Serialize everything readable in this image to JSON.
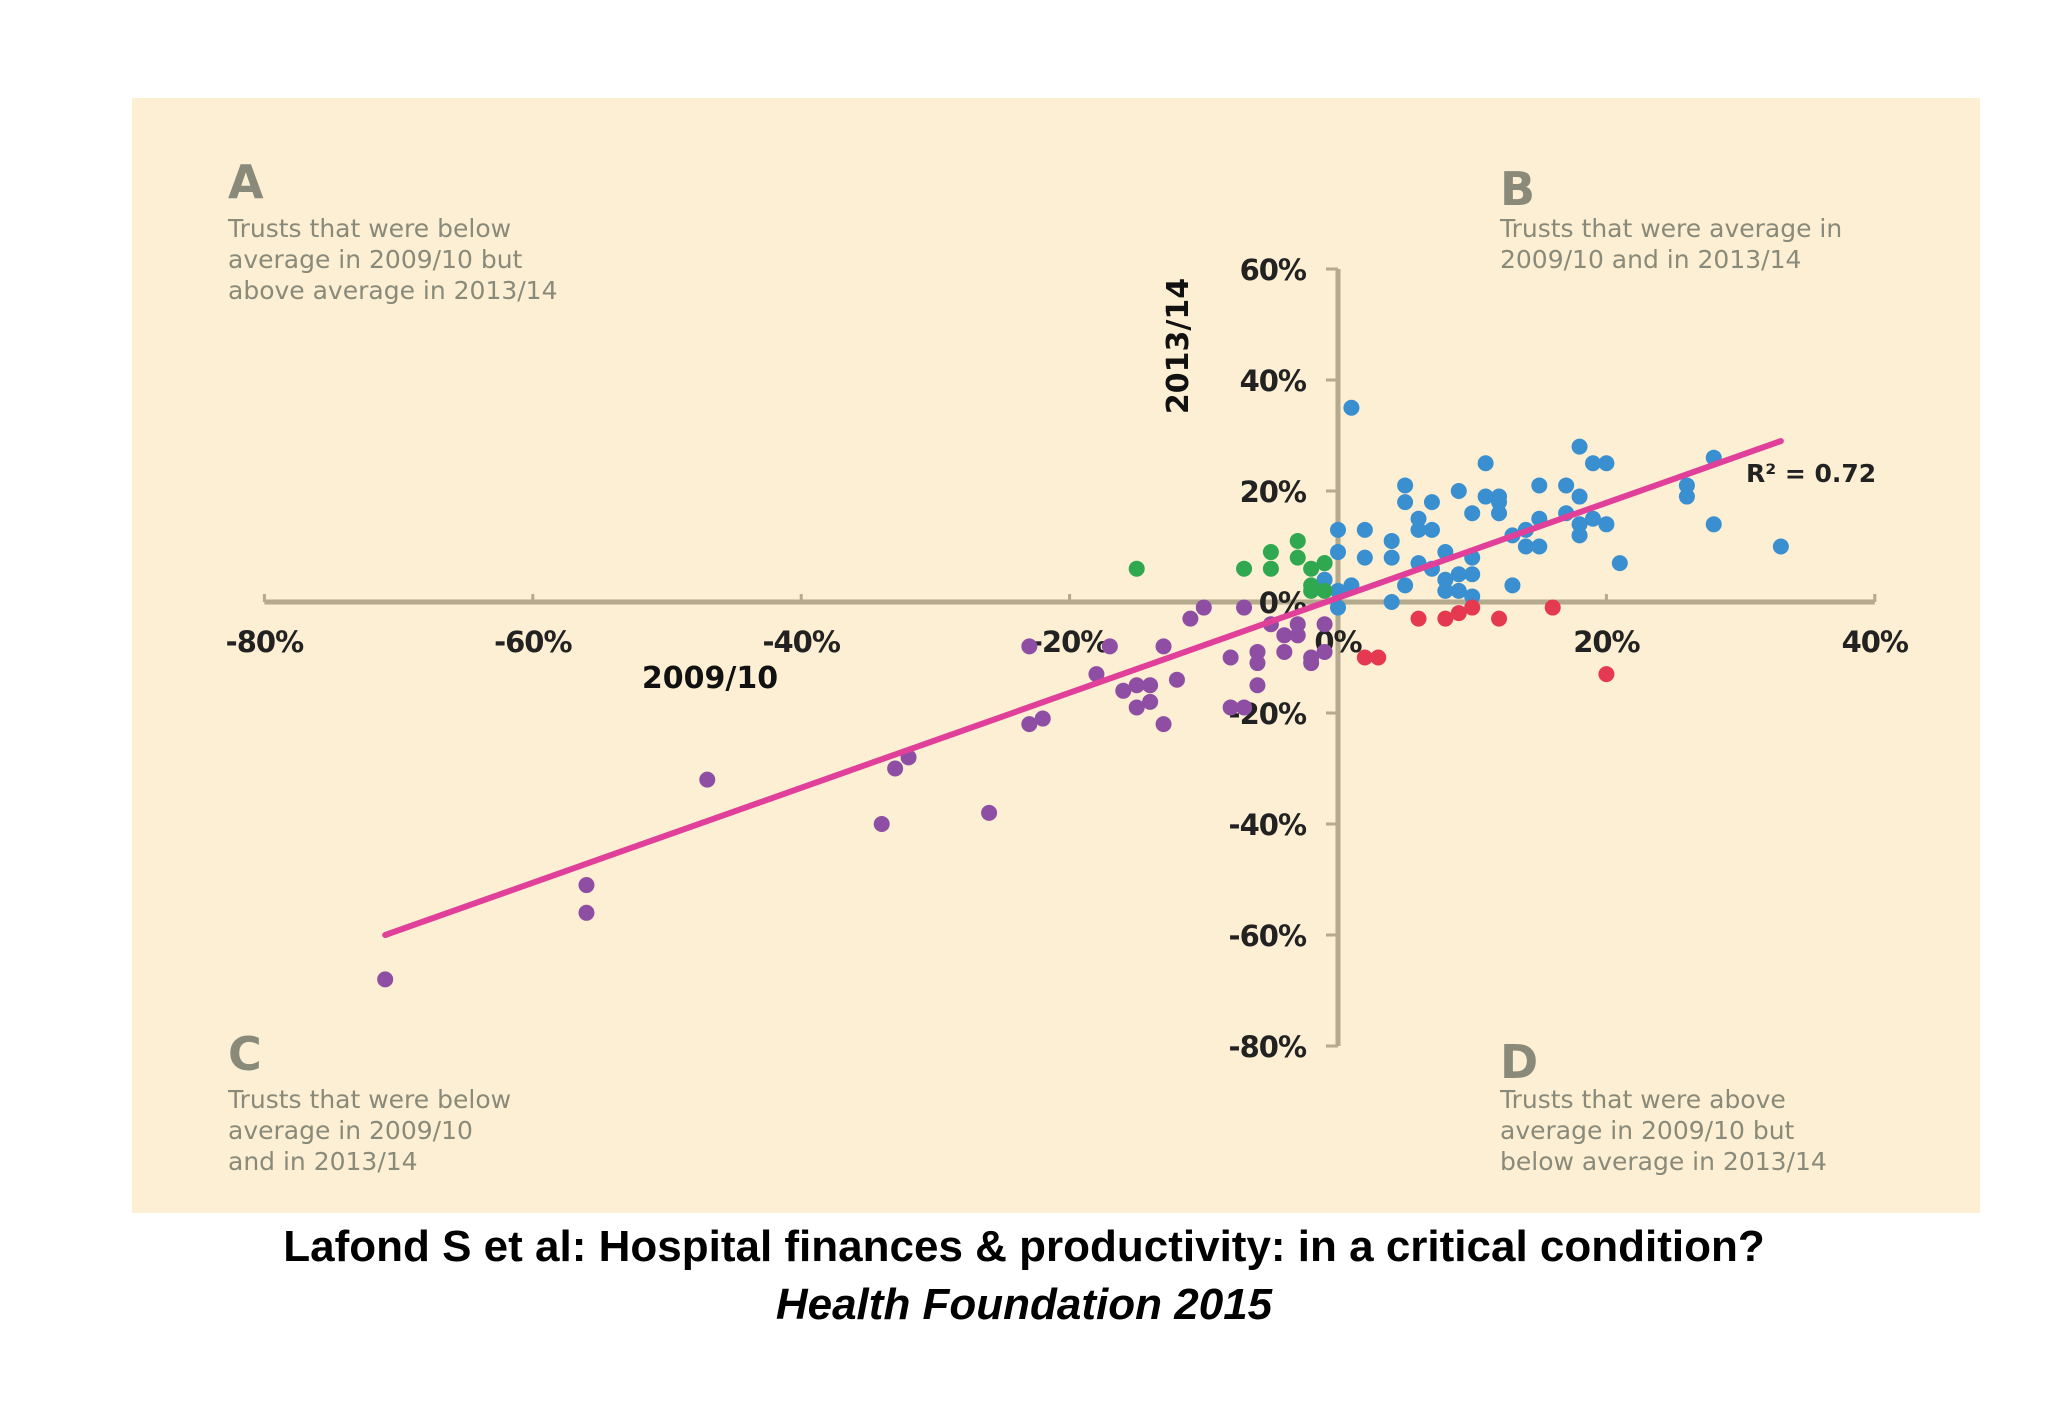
{
  "chart_data": {
    "type": "scatter",
    "xlabel": "2009/10",
    "ylabel": "2013/14",
    "xlim": [
      -80,
      40
    ],
    "ylim": [
      -80,
      60
    ],
    "xticks": [
      "-80%",
      "-60%",
      "-40%",
      "-20%",
      "0%",
      "20%",
      "40%"
    ],
    "xtick_values": [
      -80,
      -60,
      -40,
      -20,
      0,
      20,
      40
    ],
    "yticks": [
      "60%",
      "40%",
      "20%",
      "0%",
      "-20%",
      "-40%",
      "-60%",
      "-80%"
    ],
    "ytick_values": [
      60,
      40,
      20,
      0,
      -20,
      -40,
      -60,
      -80
    ],
    "background": "#fcefd3",
    "axis_color": "#b5a98e",
    "quadrants": [
      {
        "letter": "A",
        "lines": [
          "Trusts that were below",
          "average in 2009/10 but",
          "above average in 2013/14"
        ]
      },
      {
        "letter": "B",
        "lines": [
          "Trusts that were average in",
          "2009/10 and in 2013/14"
        ]
      },
      {
        "letter": "C",
        "lines": [
          "Trusts that were below",
          "average in 2009/10",
          "and in 2013/14"
        ]
      },
      {
        "letter": "D",
        "lines": [
          "Trusts that were above",
          "average in 2009/10 but",
          "below average in 2013/14"
        ]
      }
    ],
    "trendline": {
      "color": "#e0409a",
      "points": [
        [
          -71,
          -60
        ],
        [
          33,
          29
        ]
      ],
      "r2_label": "R² = 0.72"
    },
    "series": [
      {
        "color": "#3a8fd0",
        "points": [
          [
            1,
            35
          ],
          [
            0,
            13
          ],
          [
            2,
            13
          ],
          [
            0,
            9
          ],
          [
            2,
            8
          ],
          [
            0,
            2
          ],
          [
            0,
            -1
          ],
          [
            1,
            3
          ],
          [
            -1,
            7
          ],
          [
            -1,
            4
          ],
          [
            4,
            11
          ],
          [
            4,
            8
          ],
          [
            4,
            0
          ],
          [
            5,
            3
          ],
          [
            5,
            21
          ],
          [
            5,
            18
          ],
          [
            6,
            13
          ],
          [
            6,
            15
          ],
          [
            6,
            7
          ],
          [
            7,
            18
          ],
          [
            7,
            13
          ],
          [
            7,
            6
          ],
          [
            8,
            4
          ],
          [
            8,
            2
          ],
          [
            8,
            9
          ],
          [
            9,
            5
          ],
          [
            9,
            2
          ],
          [
            9,
            20
          ],
          [
            10,
            8
          ],
          [
            10,
            5
          ],
          [
            10,
            1
          ],
          [
            10,
            16
          ],
          [
            11,
            25
          ],
          [
            11,
            19
          ],
          [
            12,
            16
          ],
          [
            12,
            18
          ],
          [
            12,
            19
          ],
          [
            13,
            3
          ],
          [
            13,
            12
          ],
          [
            14,
            10
          ],
          [
            14,
            13
          ],
          [
            15,
            10
          ],
          [
            15,
            15
          ],
          [
            15,
            21
          ],
          [
            17,
            21
          ],
          [
            17,
            16
          ],
          [
            18,
            28
          ],
          [
            18,
            19
          ],
          [
            18,
            14
          ],
          [
            18,
            12
          ],
          [
            19,
            25
          ],
          [
            19,
            15
          ],
          [
            20,
            25
          ],
          [
            20,
            14
          ],
          [
            21,
            7
          ],
          [
            26,
            21
          ],
          [
            26,
            19
          ],
          [
            28,
            26
          ],
          [
            28,
            14
          ],
          [
            33,
            10
          ]
        ]
      },
      {
        "color": "#2fa84f",
        "points": [
          [
            -15,
            6
          ],
          [
            -7,
            6
          ],
          [
            -5,
            9
          ],
          [
            -5,
            6
          ],
          [
            -3,
            11
          ],
          [
            -3,
            8
          ],
          [
            -2,
            6
          ],
          [
            -2,
            3
          ],
          [
            -1,
            7
          ],
          [
            -2,
            2
          ],
          [
            -1,
            2
          ]
        ]
      },
      {
        "color": "#8e4ea4",
        "points": [
          [
            -71,
            -68
          ],
          [
            -56,
            -51
          ],
          [
            -56,
            -56
          ],
          [
            -47,
            -32
          ],
          [
            -34,
            -40
          ],
          [
            -33,
            -30
          ],
          [
            -32,
            -28
          ],
          [
            -26,
            -38
          ],
          [
            -23,
            -8
          ],
          [
            -23,
            -22
          ],
          [
            -22,
            -21
          ],
          [
            -17,
            -8
          ],
          [
            -18,
            -13
          ],
          [
            -16,
            -16
          ],
          [
            -15,
            -15
          ],
          [
            -15,
            -19
          ],
          [
            -14,
            -18
          ],
          [
            -14,
            -15
          ],
          [
            -13,
            -8
          ],
          [
            -13,
            -22
          ],
          [
            -12,
            -14
          ],
          [
            -11,
            -3
          ],
          [
            -10,
            -1
          ],
          [
            -8,
            -10
          ],
          [
            -8,
            -19
          ],
          [
            -7,
            -19
          ],
          [
            -6,
            -9
          ],
          [
            -6,
            -11
          ],
          [
            -6,
            -15
          ],
          [
            -7,
            -1
          ],
          [
            -5,
            -4
          ],
          [
            -4,
            -6
          ],
          [
            -4,
            -9
          ],
          [
            -3,
            -4
          ],
          [
            -3,
            -6
          ],
          [
            -2,
            -10
          ],
          [
            -2,
            -11
          ],
          [
            -1,
            -4
          ],
          [
            -1,
            -9
          ]
        ]
      },
      {
        "color": "#e53950",
        "points": [
          [
            2,
            -10
          ],
          [
            3,
            -10
          ],
          [
            6,
            -3
          ],
          [
            8,
            -3
          ],
          [
            9,
            -2
          ],
          [
            10,
            -1
          ],
          [
            12,
            -3
          ],
          [
            16,
            -1
          ],
          [
            20,
            -13
          ]
        ]
      }
    ]
  },
  "caption": {
    "line1": "Lafond S et al: Hospital finances & productivity: in a critical condition?",
    "line2": "Health Foundation 2015"
  }
}
